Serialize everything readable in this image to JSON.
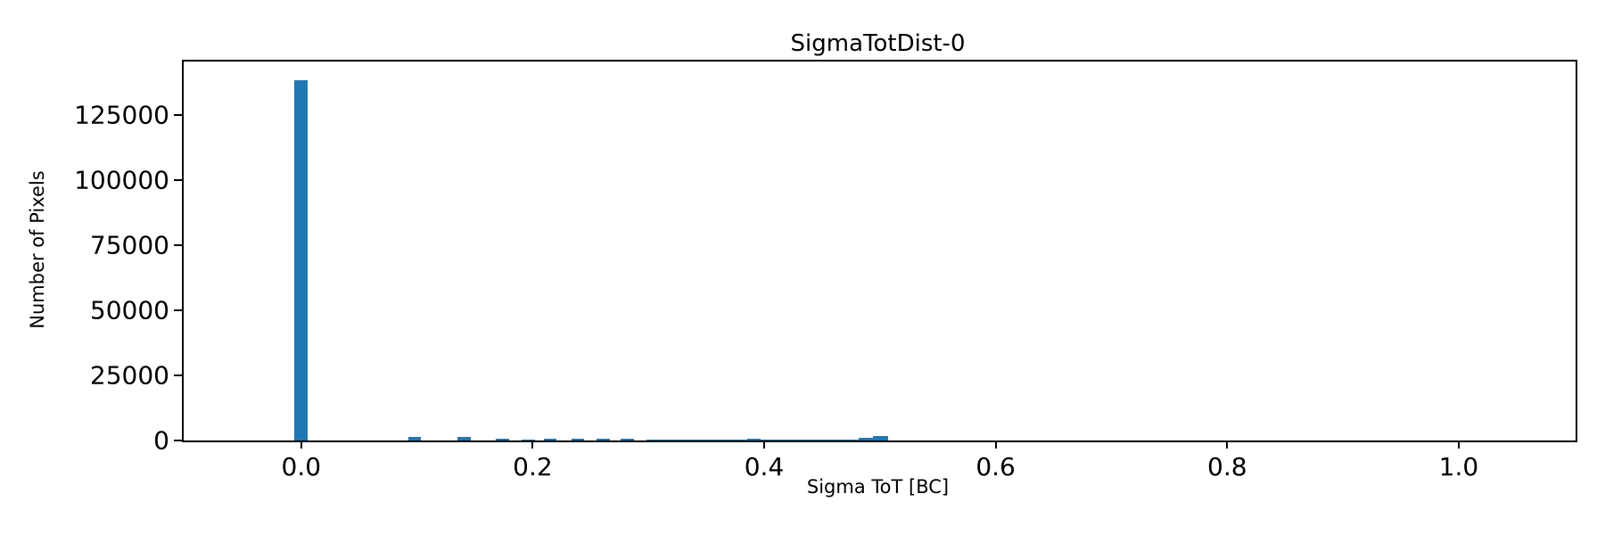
{
  "chart_data": {
    "type": "bar",
    "subtype": "histogram",
    "title": "SigmaTotDist-0",
    "xlabel": "Sigma ToT [BC]",
    "ylabel": "Number of Pixels",
    "bar_color": "#1f77b4",
    "axis_color": "#000000",
    "background_color": "#ffffff",
    "grid": false,
    "legend": false,
    "xlim": [
      -0.1015,
      1.101
    ],
    "ylim": [
      0,
      145600
    ],
    "xticks": [
      {
        "value": 0.0,
        "label": "0.0"
      },
      {
        "value": 0.2,
        "label": "0.2"
      },
      {
        "value": 0.4,
        "label": "0.4"
      },
      {
        "value": 0.6,
        "label": "0.6"
      },
      {
        "value": 0.8,
        "label": "0.8"
      },
      {
        "value": 1.0,
        "label": "1.0"
      }
    ],
    "yticks": [
      {
        "value": 0,
        "label": "0"
      },
      {
        "value": 25000,
        "label": "25000"
      },
      {
        "value": 50000,
        "label": "50000"
      },
      {
        "value": 75000,
        "label": "75000"
      },
      {
        "value": 100000,
        "label": "100000"
      },
      {
        "value": 125000,
        "label": "125000"
      }
    ],
    "bars": [
      {
        "x": -0.0058,
        "w": 0.0115,
        "v": 138400
      },
      {
        "x": 0.0923,
        "w": 0.0115,
        "v": 1500
      },
      {
        "x": 0.1353,
        "w": 0.0115,
        "v": 1250
      },
      {
        "x": 0.1683,
        "w": 0.0115,
        "v": 850
      },
      {
        "x": 0.1903,
        "w": 0.0115,
        "v": 520
      },
      {
        "x": 0.2093,
        "w": 0.0115,
        "v": 700
      },
      {
        "x": 0.2333,
        "w": 0.0115,
        "v": 700
      },
      {
        "x": 0.2553,
        "w": 0.0115,
        "v": 620
      },
      {
        "x": 0.2763,
        "w": 0.0115,
        "v": 700
      },
      {
        "x": 0.2983,
        "w": 0.087,
        "v": 260
      },
      {
        "x": 0.3853,
        "w": 0.0115,
        "v": 800
      },
      {
        "x": 0.3968,
        "w": 0.053,
        "v": 260
      },
      {
        "x": 0.4498,
        "w": 0.032,
        "v": 480
      },
      {
        "x": 0.4818,
        "w": 0.012,
        "v": 1000
      },
      {
        "x": 0.4938,
        "w": 0.013,
        "v": 1600
      }
    ]
  }
}
